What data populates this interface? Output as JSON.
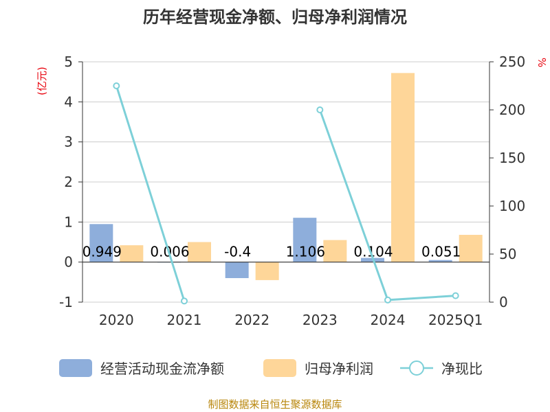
{
  "chart_data": {
    "type": "bar+line",
    "title": "历年经营现金净额、归母净利润情况",
    "categories": [
      "2020",
      "2021",
      "2022",
      "2023",
      "2024",
      "2025Q1"
    ],
    "series": [
      {
        "name": "经营活动现金流净额",
        "type": "bar",
        "axis": "left",
        "color": "#8eaedb",
        "values": [
          0.949,
          0.006,
          -0.4,
          1.106,
          0.104,
          0.051
        ],
        "labels": [
          "0.949",
          "0.006",
          "-0.4",
          "1.106",
          "0.104",
          "0.051"
        ]
      },
      {
        "name": "归母净利润",
        "type": "bar",
        "axis": "left",
        "color": "#fed699",
        "values": [
          0.42,
          0.5,
          -0.45,
          0.55,
          4.72,
          0.68
        ]
      },
      {
        "name": "净现比",
        "type": "line",
        "axis": "right",
        "color": "#7dd0d8",
        "values": [
          225,
          1.2,
          null,
          200,
          2.2,
          6.7
        ]
      }
    ],
    "left_axis": {
      "unit": "(亿元)",
      "min": -1,
      "max": 5,
      "ticks": [
        "-1",
        "0",
        "1",
        "2",
        "3",
        "4",
        "5"
      ]
    },
    "right_axis": {
      "unit": "%",
      "min": 0,
      "max": 250,
      "ticks": [
        "0",
        "50",
        "100",
        "150",
        "200",
        "250"
      ]
    },
    "grid": true,
    "legend": "bottom"
  },
  "source": "制图数据来自恒生聚源数据库"
}
